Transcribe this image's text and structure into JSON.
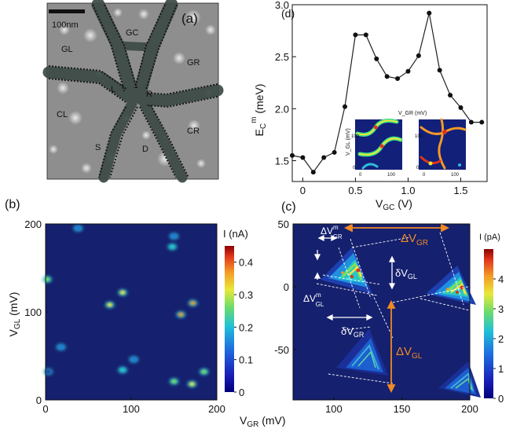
{
  "figure": {
    "panel_a": {
      "label": "(a)",
      "scale_bar": "100nm",
      "regions": [
        "GC",
        "GL",
        "GR",
        "L",
        "R",
        "CL",
        "CR",
        "S",
        "D"
      ]
    }
  },
  "colors": {
    "heat_bg": "#15206e",
    "axis": "#111111",
    "orange": "#f08a24",
    "white": "#ffffff"
  },
  "chart_data": [
    {
      "id": "d",
      "panel_label": "(d)",
      "type": "line",
      "xlabel": "V_GC (V)",
      "ylabel": "E_C^m (meV)",
      "xlim": [
        -0.1,
        1.75
      ],
      "ylim": [
        1.3,
        3.0
      ],
      "xticks": [
        "0",
        "0.5",
        "1.0",
        "1.5"
      ],
      "yticks": [
        "1.5",
        "2.0",
        "2.5",
        "3.0"
      ],
      "x": [
        -0.1,
        0.0,
        0.1,
        0.2,
        0.3,
        0.4,
        0.5,
        0.6,
        0.7,
        0.8,
        0.9,
        1.0,
        1.1,
        1.2,
        1.3,
        1.4,
        1.5,
        1.6,
        1.7
      ],
      "y": [
        1.55,
        1.53,
        1.39,
        1.53,
        1.58,
        2.02,
        2.71,
        2.71,
        2.48,
        2.31,
        2.29,
        2.36,
        2.51,
        2.92,
        2.37,
        2.13,
        2.01,
        1.87,
        1.87
      ],
      "inset": {
        "top_label": "V_GR (mV)",
        "side_label": "V_GL (mV)",
        "ticks": [
          "0",
          "100"
        ]
      }
    },
    {
      "id": "b",
      "panel_label": "(b)",
      "type": "heatmap",
      "xlabel": "V_GR (mV)",
      "ylabel": "V_GL (mV)",
      "xlim": [
        0,
        200
      ],
      "ylim": [
        0,
        200
      ],
      "xticks": [
        "0",
        "100",
        "200"
      ],
      "yticks": [
        "0",
        "100",
        "200"
      ],
      "colorbar_label": "I (nA)",
      "colorbar_ticks": [
        "0",
        "0.1",
        "0.2",
        "0.3",
        "0.4"
      ],
      "clim": [
        0,
        0.45
      ],
      "peaks": [
        {
          "x": 2,
          "y": 137,
          "v": 0.3
        },
        {
          "x": 38,
          "y": 195,
          "v": 0.15
        },
        {
          "x": 75,
          "y": 108,
          "v": 0.38
        },
        {
          "x": 90,
          "y": 122,
          "v": 0.4
        },
        {
          "x": 148,
          "y": 174,
          "v": 0.25
        },
        {
          "x": 150,
          "y": 186,
          "v": 0.18
        },
        {
          "x": 158,
          "y": 97,
          "v": 0.42
        },
        {
          "x": 172,
          "y": 110,
          "v": 0.44
        },
        {
          "x": 18,
          "y": 60,
          "v": 0.2
        },
        {
          "x": 90,
          "y": 34,
          "v": 0.25
        },
        {
          "x": 103,
          "y": 46,
          "v": 0.18
        },
        {
          "x": 150,
          "y": 21,
          "v": 0.32
        },
        {
          "x": 171,
          "y": 18,
          "v": 0.36
        },
        {
          "x": 185,
          "y": 32,
          "v": 0.3
        },
        {
          "x": 3,
          "y": 32,
          "v": 0.1
        }
      ]
    },
    {
      "id": "c",
      "panel_label": "(c)",
      "type": "heatmap",
      "xlabel": "",
      "ylabel": "",
      "xlim": [
        70,
        200
      ],
      "ylim": [
        -90,
        50
      ],
      "xticks": [
        "100",
        "150",
        "200"
      ],
      "yticks": [
        "-50",
        "0",
        "50"
      ],
      "colorbar_label": "I (pA)",
      "colorbar_ticks": [
        "0",
        "1",
        "2",
        "3",
        "4"
      ],
      "clim": [
        0,
        5
      ],
      "annotations": {
        "dV_GR_big": "ΔV_GR",
        "dV_GL_big": "ΔV_GL",
        "dV_GR_small": "δV_GR",
        "dV_GL_small": "δV_GL",
        "dVm_GR": "ΔV^m_GR",
        "dVm_GL": "ΔV^m_GL"
      }
    }
  ]
}
